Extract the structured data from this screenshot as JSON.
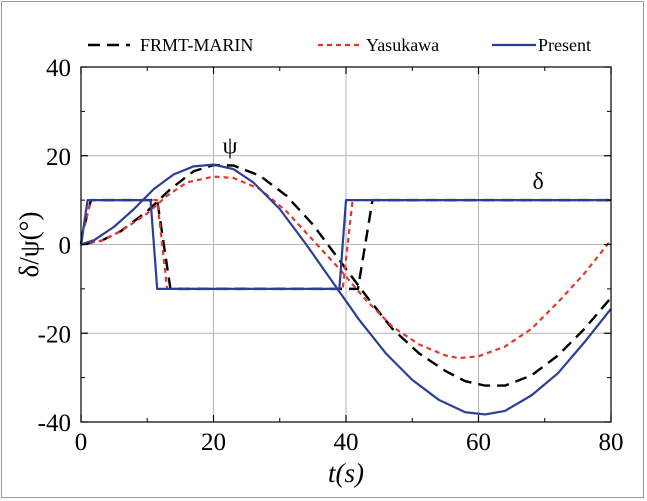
{
  "chart_data": {
    "type": "line",
    "title": "",
    "xlabel": "t(s)",
    "ylabel": "δ/ψ(°)",
    "xlim": [
      0,
      80
    ],
    "ylim": [
      -40,
      40
    ],
    "xticks": [
      "0",
      "20",
      "40",
      "60",
      "80"
    ],
    "yticks": [
      "40",
      "20",
      "0",
      "-20",
      "-40"
    ],
    "grid": true,
    "legend_position": "top",
    "annotations": [
      {
        "text": "ψ",
        "x": 22.5,
        "y": 20.5
      },
      {
        "text": "δ",
        "x": 69,
        "y": 12.5
      }
    ],
    "series": [
      {
        "name": "FRMT-MARIN",
        "color": "#000000",
        "dash": "dashed",
        "variable": "δ",
        "x": [
          0,
          0.3,
          1.5,
          11.5,
          13.5,
          41.8,
          44,
          80
        ],
        "y": [
          0,
          3,
          10,
          10,
          -10,
          -10,
          10,
          10
        ]
      },
      {
        "name": "FRMT-MARIN",
        "color": "#000000",
        "dash": "dashed",
        "variable": "ψ",
        "x": [
          0,
          3,
          6,
          10,
          13.5,
          17,
          20,
          23,
          27,
          31,
          35,
          39,
          43,
          47,
          51,
          55,
          58,
          61,
          64,
          68,
          72,
          76,
          80
        ],
        "y": [
          0,
          0.8,
          3,
          7.5,
          12.5,
          16.5,
          17.9,
          17.8,
          15.5,
          11,
          4.5,
          -3.5,
          -11.5,
          -19,
          -24.5,
          -28.5,
          -30.8,
          -31.8,
          -31.8,
          -29.5,
          -25,
          -19,
          -12
        ]
      },
      {
        "name": "Yasukawa",
        "color": "#e03a2e",
        "dash": "dotted",
        "variable": "δ",
        "x": [
          0,
          0.3,
          1.5,
          11.5,
          13,
          39.5,
          41,
          80
        ],
        "y": [
          0,
          3,
          10,
          10,
          -10,
          -10,
          10,
          10
        ]
      },
      {
        "name": "Yasukawa",
        "color": "#e03a2e",
        "dash": "dotted",
        "variable": "ψ",
        "x": [
          0,
          3,
          6,
          10,
          13,
          16,
          20,
          23,
          27,
          31,
          35,
          39,
          43,
          47,
          51,
          55,
          57,
          60,
          64,
          68,
          72,
          76,
          80
        ],
        "y": [
          0,
          0.8,
          3,
          7,
          11,
          14,
          15.3,
          15,
          12.5,
          7.5,
          1,
          -5.5,
          -12.5,
          -18.5,
          -22.5,
          -25,
          -25.6,
          -25.2,
          -23,
          -19,
          -13,
          -6.5,
          1
        ]
      },
      {
        "name": "Present",
        "color": "#2b3f97",
        "dash": "solid",
        "variable": "δ",
        "x": [
          0,
          0.3,
          1,
          10.5,
          11.5,
          39,
          40,
          80
        ],
        "y": [
          0,
          3,
          10,
          10,
          -10,
          -10,
          10,
          10
        ]
      },
      {
        "name": "Present",
        "color": "#2b3f97",
        "dash": "solid",
        "variable": "ψ",
        "x": [
          0,
          2,
          5,
          8,
          11,
          14,
          17,
          20,
          23,
          26,
          30,
          34,
          38,
          42,
          46,
          50,
          54,
          58,
          61,
          64,
          68,
          72,
          76,
          80
        ],
        "y": [
          0,
          1,
          4,
          8,
          12.5,
          15.8,
          17.6,
          18,
          17,
          14,
          8,
          0,
          -8.5,
          -17,
          -24.5,
          -30.5,
          -35,
          -37.8,
          -38.3,
          -37.5,
          -34,
          -29,
          -22,
          -14.5
        ]
      }
    ]
  }
}
